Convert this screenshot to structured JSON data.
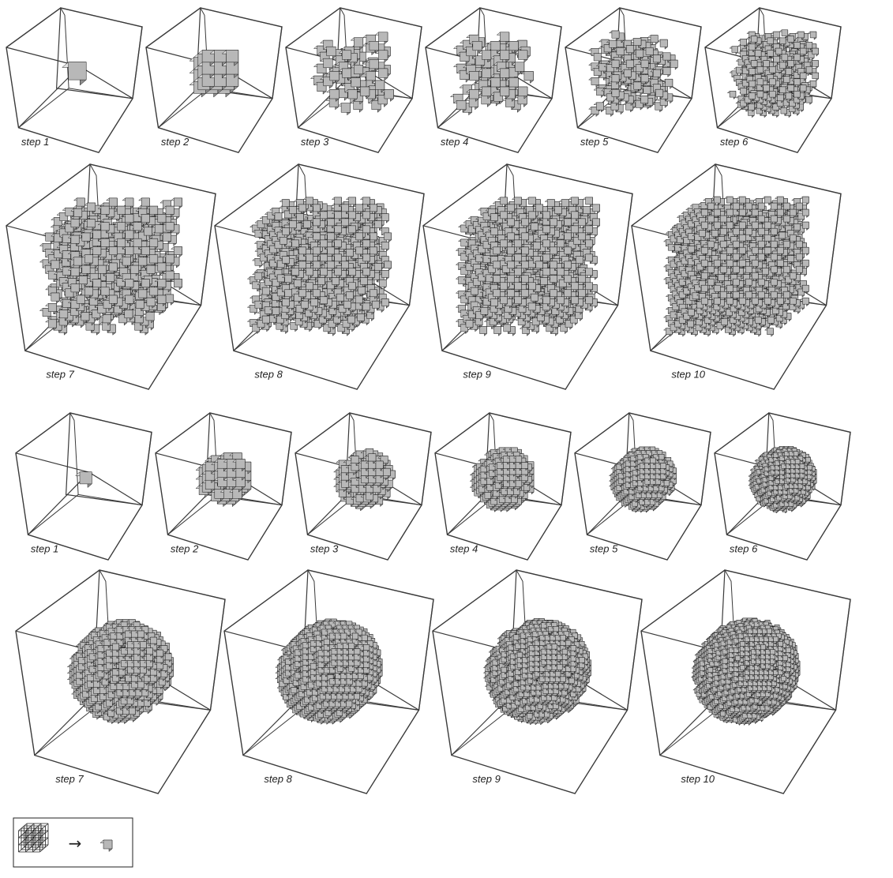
{
  "colors": {
    "frame": "#3a3a3a",
    "voxel_top": "#e4e4e4",
    "voxel_front": "#b8b8b8",
    "voxel_side": "#8e8e8e",
    "voxel_edge": "#1e1e1e",
    "legend_wire": "#222222"
  },
  "sections": [
    {
      "id": "top-sequence",
      "pattern": "nested-cubes",
      "panels": [
        {
          "step": 1,
          "label": "step 1"
        },
        {
          "step": 2,
          "label": "step 2"
        },
        {
          "step": 3,
          "label": "step 3"
        },
        {
          "step": 4,
          "label": "step 4"
        },
        {
          "step": 5,
          "label": "step 5"
        },
        {
          "step": 6,
          "label": "step 6"
        },
        {
          "step": 7,
          "label": "step 7"
        },
        {
          "step": 8,
          "label": "step 8"
        },
        {
          "step": 9,
          "label": "step 9"
        },
        {
          "step": 10,
          "label": "step 10"
        }
      ]
    },
    {
      "id": "bottom-sequence",
      "pattern": "growing-blob",
      "panels": [
        {
          "step": 1,
          "label": "step 1"
        },
        {
          "step": 2,
          "label": "step 2"
        },
        {
          "step": 3,
          "label": "step 3"
        },
        {
          "step": 4,
          "label": "step 4"
        },
        {
          "step": 5,
          "label": "step 5"
        },
        {
          "step": 6,
          "label": "step 6"
        },
        {
          "step": 7,
          "label": "step 7"
        },
        {
          "step": 8,
          "label": "step 8"
        },
        {
          "step": 9,
          "label": "step 9"
        },
        {
          "step": 10,
          "label": "step 10"
        }
      ]
    }
  ],
  "legend": {
    "arrow": "→",
    "icons": [
      "wireframe-cube-icon",
      "solid-cube-icon"
    ]
  }
}
